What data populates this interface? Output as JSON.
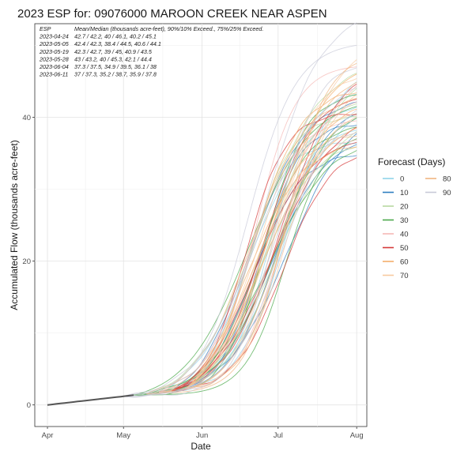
{
  "chart_data": {
    "type": "line",
    "title": "2023 ESP for:  09076000   MAROON CREEK NEAR ASPEN",
    "xlabel": "Date",
    "ylabel": "Accumulated Flow (thousands acre-feet)",
    "xlim": [
      "2023-03-27",
      "2023-08-05"
    ],
    "ylim": [
      -3,
      53
    ],
    "x_ticks": [
      {
        "date": "2023-04-01",
        "label": "Apr"
      },
      {
        "date": "2023-05-01",
        "label": "May"
      },
      {
        "date": "2023-06-01",
        "label": "Jun"
      },
      {
        "date": "2023-07-01",
        "label": "Jul"
      },
      {
        "date": "2023-08-01",
        "label": "Aug"
      }
    ],
    "y_ticks": [
      0,
      20,
      40
    ],
    "grid": true,
    "start": {
      "date": "2023-04-01",
      "value": 0
    },
    "legend": {
      "title": "Forecast (Days)",
      "placement": "right",
      "entries": [
        {
          "label": "0",
          "color": "#8fd3ea"
        },
        {
          "label": "10",
          "color": "#2f7fc0"
        },
        {
          "label": "20",
          "color": "#b7d9a0"
        },
        {
          "label": "30",
          "color": "#4aa84a"
        },
        {
          "label": "40",
          "color": "#f5b8b5"
        },
        {
          "label": "50",
          "color": "#d63a3a"
        },
        {
          "label": "60",
          "color": "#f3ad6a"
        },
        {
          "label": "70",
          "color": "#f8c9a0"
        },
        {
          "label": "80",
          "color": "#f0b580"
        },
        {
          "label": "90",
          "color": "#c8cad8"
        }
      ]
    },
    "annotation": {
      "header": {
        "col1": "ESP",
        "col2": "Mean/Median (thousands acre-feet), 90%/10% Exceed., 75%/25% Exceed."
      },
      "rows": [
        {
          "date": "2023-04-24",
          "text": "42.7 / 42.2,   40 / 46.1,   40.2 / 45.1"
        },
        {
          "date": "2023-05-05",
          "text": "42.4 / 42.3,   38.4 / 44.5,   40.6 / 44.1"
        },
        {
          "date": "2023-05-19",
          "text": "42.3 / 42.7,   39 / 45,   40.9 / 43.5"
        },
        {
          "date": "2023-05-28",
          "text": "43 / 43.2,   40 / 45.3,   42.1 / 44.4"
        },
        {
          "date": "2023-06-04",
          "text": "37.3 / 37.5,   34.9 / 39.5,   36.1 / 38"
        },
        {
          "date": "2023-06-11",
          "text": "37 / 37.3,   35.2 / 38.7,   35.9 / 37.8"
        }
      ]
    },
    "series": [
      {
        "forecast_days": 0,
        "color": "#8fd3ea",
        "first_date": "2023-05-15",
        "end_values": [
          36.5,
          38.2,
          39.8,
          41.5,
          43.2,
          44.8
        ]
      },
      {
        "forecast_days": 10,
        "color": "#2f7fc0",
        "first_date": "2023-05-20",
        "end_values": [
          34.8,
          36.2,
          37.6,
          39.0,
          40.5,
          42.0
        ]
      },
      {
        "forecast_days": 20,
        "color": "#b7d9a0",
        "first_date": "2023-05-10",
        "end_values": [
          36.0,
          38.0,
          40.0,
          42.0,
          44.0,
          46.0
        ]
      },
      {
        "forecast_days": 30,
        "color": "#4aa84a",
        "first_date": "2023-05-05",
        "end_values": [
          35.5,
          37.0,
          38.5,
          40.0,
          41.5,
          43.0
        ]
      },
      {
        "forecast_days": 40,
        "color": "#f5b8b5",
        "first_date": "2023-05-15",
        "end_values": [
          37.0,
          39.5,
          42.0,
          44.5,
          47.0
        ]
      },
      {
        "forecast_days": 50,
        "color": "#d63a3a",
        "first_date": "2023-05-20",
        "end_values": [
          34.5,
          36.5,
          38.5,
          40.5,
          42.5,
          44.5
        ]
      },
      {
        "forecast_days": 60,
        "color": "#f3ad6a",
        "first_date": "2023-05-25",
        "end_values": [
          36.0,
          38.5,
          41.0,
          43.5,
          46.0
        ]
      },
      {
        "forecast_days": 70,
        "color": "#f8c9a0",
        "first_date": "2023-05-25",
        "end_values": [
          38.0,
          40.5,
          43.0,
          45.5,
          48.0
        ]
      },
      {
        "forecast_days": 80,
        "color": "#f0b580",
        "first_date": "2023-05-10",
        "end_values": [
          37.5,
          40.0,
          42.5,
          45.0,
          47.5
        ]
      },
      {
        "forecast_days": 90,
        "color": "#c8cad8",
        "first_date": "2023-05-01",
        "end_values": [
          38.0,
          41.0,
          44.0,
          47.0,
          50.0,
          53.0
        ]
      }
    ]
  }
}
